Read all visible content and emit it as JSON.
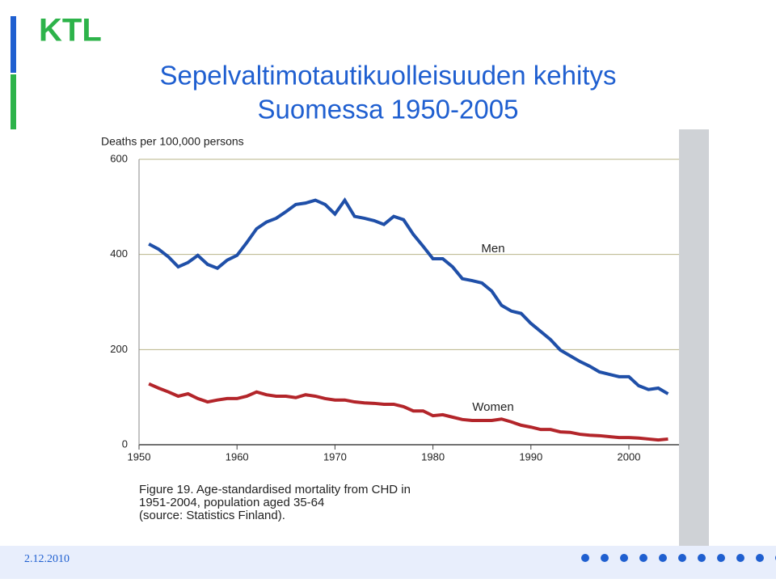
{
  "slide": {
    "logo": "KTL",
    "title": "Sepelvaltimotautikuolleisuuden kehitys",
    "subtitle": "Suomessa 1950-2005",
    "date": "2.12.2010"
  },
  "chart_data": {
    "type": "line",
    "ylabel": "Deaths per 100,000 persons",
    "x": [
      1951,
      1952,
      1953,
      1954,
      1955,
      1956,
      1957,
      1958,
      1959,
      1960,
      1961,
      1962,
      1963,
      1964,
      1965,
      1966,
      1967,
      1968,
      1969,
      1970,
      1971,
      1972,
      1973,
      1974,
      1975,
      1976,
      1977,
      1978,
      1979,
      1980,
      1981,
      1982,
      1983,
      1984,
      1985,
      1986,
      1987,
      1988,
      1989,
      1990,
      1991,
      1992,
      1993,
      1994,
      1995,
      1996,
      1997,
      1998,
      1999,
      2000,
      2001,
      2002,
      2003,
      2004
    ],
    "series": [
      {
        "name": "Men",
        "color": "#1f4fa8",
        "values": [
          422,
          411,
          395,
          374,
          383,
          398,
          379,
          371,
          388,
          398,
          425,
          454,
          468,
          476,
          490,
          505,
          508,
          514,
          505,
          485,
          514,
          480,
          476,
          471,
          463,
          480,
          473,
          442,
          417,
          391,
          391,
          374,
          349,
          345,
          340,
          323,
          293,
          281,
          276,
          255,
          238,
          221,
          199,
          187,
          175,
          165,
          153,
          148,
          143,
          143,
          124,
          116,
          119,
          107
        ]
      },
      {
        "name": "Women",
        "color": "#b3252a",
        "values": [
          128,
          119,
          111,
          102,
          107,
          97,
          90,
          94,
          97,
          97,
          102,
          111,
          105,
          102,
          102,
          99,
          105,
          102,
          97,
          94,
          94,
          90,
          88,
          87,
          85,
          85,
          80,
          71,
          71,
          61,
          63,
          58,
          53,
          51,
          51,
          51,
          54,
          48,
          41,
          37,
          32,
          32,
          27,
          26,
          22,
          20,
          19,
          17,
          15,
          15,
          14,
          12,
          10,
          12
        ]
      }
    ],
    "xlim": [
      1950,
      2005
    ],
    "ylim": [
      0,
      600
    ],
    "xticks": [
      1950,
      1960,
      1970,
      1980,
      1990,
      2000
    ],
    "yticks": [
      0,
      200,
      400,
      600
    ],
    "grid": true,
    "caption": [
      "Figure 19. Age-standardised mortality from CHD in",
      "1951-2004, population aged 35-64",
      "(source: Statistics Finland)."
    ]
  }
}
